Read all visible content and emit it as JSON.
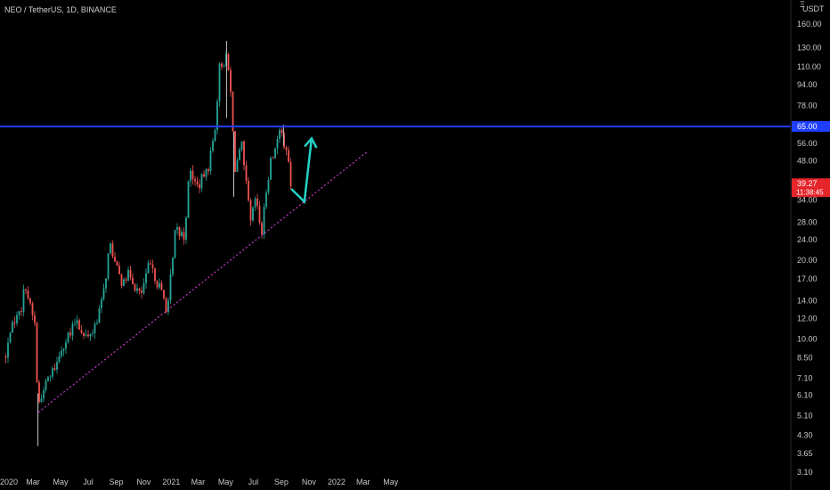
{
  "header": {
    "symbol_title": "NEO / TetherUS, 1D, BINANCE",
    "scale_unit": "USDT",
    "scale_prefix": "Ξ"
  },
  "colors": {
    "background": "#000000",
    "candle_up": "#26a69a",
    "candle_down": "#ef5350",
    "resistance_line": "#1f3fff",
    "trendline": "#c83cc8",
    "projection_arrow": "#22d3c5",
    "price_label": "#e5252a",
    "resistance_label": "#1f3fff"
  },
  "chart_data": {
    "type": "candlestick",
    "y_scale": "log",
    "ylim": [
      3.1,
      200
    ],
    "x_tick_labels": [
      "2020",
      "Mar",
      "May",
      "Jul",
      "Sep",
      "Nov",
      "2021",
      "Mar",
      "May",
      "Jul",
      "Sep",
      "Nov",
      "2022",
      "Mar",
      "May"
    ],
    "y_tick_labels": [
      "160.00",
      "130.00",
      "110.00",
      "94.00",
      "78.00",
      "65.00",
      "56.00",
      "48.00",
      "39.27",
      "34.00",
      "28.00",
      "24.00",
      "20.00",
      "17.00",
      "14.00",
      "12.00",
      "10.00",
      "8.50",
      "7.10",
      "6.10",
      "5.10",
      "4.30",
      "3.65",
      "3.10"
    ],
    "series": [
      {
        "kind": "candles",
        "anchors": [
          [
            "2020-01-01",
            8.5
          ],
          [
            "2020-01-12",
            11.0
          ],
          [
            "2020-02-05",
            13.5
          ],
          [
            "2020-02-14",
            16.2
          ],
          [
            "2020-02-25",
            13.0
          ],
          [
            "2020-03-05",
            11.5
          ],
          [
            "2020-03-12",
            5.5
          ],
          [
            "2020-03-25",
            6.5
          ],
          [
            "2020-04-20",
            8.0
          ],
          [
            "2020-05-05",
            9.5
          ],
          [
            "2020-05-25",
            10.5
          ],
          [
            "2020-06-05",
            12.0
          ],
          [
            "2020-06-25",
            10.0
          ],
          [
            "2020-07-15",
            11.0
          ],
          [
            "2020-08-01",
            14.0
          ],
          [
            "2020-08-18",
            23.0
          ],
          [
            "2020-09-10",
            17.0
          ],
          [
            "2020-10-01",
            17.5
          ],
          [
            "2020-10-25",
            14.5
          ],
          [
            "2020-11-15",
            19.5
          ],
          [
            "2020-12-10",
            15.0
          ],
          [
            "2020-12-24",
            13.0
          ],
          [
            "2021-01-10",
            26.0
          ],
          [
            "2021-01-30",
            25.0
          ],
          [
            "2021-02-10",
            45.0
          ],
          [
            "2021-02-25",
            38.0
          ],
          [
            "2021-03-20",
            43.0
          ],
          [
            "2021-04-08",
            65.0
          ],
          [
            "2021-04-18",
            110.0
          ],
          [
            "2021-05-01",
            120.0
          ],
          [
            "2021-05-10",
            100.0
          ],
          [
            "2021-05-15",
            75.0
          ],
          [
            "2021-05-20",
            45.0
          ],
          [
            "2021-06-05",
            55.0
          ],
          [
            "2021-06-25",
            28.0
          ],
          [
            "2021-07-05",
            34.0
          ],
          [
            "2021-07-20",
            26.0
          ],
          [
            "2021-08-05",
            45.0
          ],
          [
            "2021-08-25",
            60.0
          ],
          [
            "2021-09-05",
            60.0
          ],
          [
            "2021-09-15",
            50.0
          ],
          [
            "2021-09-22",
            38.0
          ]
        ],
        "wicks": [
          [
            "2020-03-12",
            3.9,
            6.2
          ],
          [
            "2021-05-03",
            70.0,
            138.0
          ],
          [
            "2021-05-19",
            35.0,
            62.0
          ],
          [
            "2021-09-06",
            55.0,
            66.0
          ]
        ]
      }
    ],
    "annotations": {
      "resistance_level": 65.0,
      "current_price": 39.27,
      "countdown": "11:38:45",
      "trendline": [
        [
          "2020-03-13",
          5.25
        ],
        [
          "2022-03-10",
          52.0
        ]
      ],
      "projection": [
        [
          "2021-09-23",
          37.5
        ],
        [
          "2021-10-22",
          33.5
        ],
        [
          "2021-11-07",
          58.5
        ]
      ]
    }
  }
}
